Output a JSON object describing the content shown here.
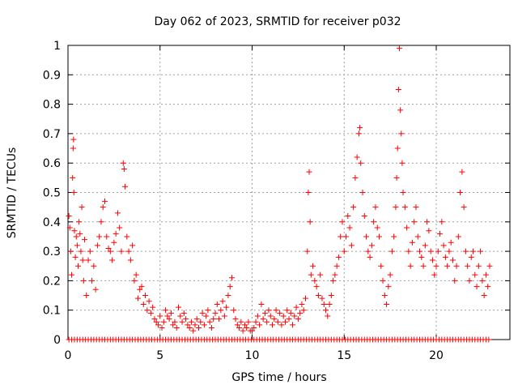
{
  "chart_data": {
    "type": "scatter",
    "title": "Day 062 of 2023, SRMTID for receiver p032",
    "xlabel": "GPS time / hours",
    "ylabel": "SRMTID / TECUs",
    "xlim": [
      0,
      24
    ],
    "ylim": [
      0,
      1
    ],
    "xticks": [
      0,
      5,
      10,
      15,
      20
    ],
    "xtick_labels": [
      "0",
      "5",
      "10",
      "15",
      "20"
    ],
    "yticks": [
      0,
      0.1,
      0.2,
      0.3,
      0.4,
      0.5,
      0.6,
      0.7,
      0.8,
      0.9,
      1
    ],
    "ytick_labels": [
      "0",
      "0.1",
      "0.2",
      "0.3",
      "0.4",
      "0.5",
      "0.6",
      "0.7",
      "0.8",
      "0.9",
      "1"
    ],
    "grid": true,
    "marker": "+",
    "marker_color": "#ff0000",
    "series": [
      {
        "name": "SRMTID",
        "points": [
          [
            0.05,
            0.42
          ],
          [
            0.1,
            0.38
          ],
          [
            0.15,
            0.3
          ],
          [
            0.2,
            0.22
          ],
          [
            0.25,
            0.55
          ],
          [
            0.28,
            0.65
          ],
          [
            0.3,
            0.68
          ],
          [
            0.32,
            0.5
          ],
          [
            0.35,
            0.37
          ],
          [
            0.4,
            0.28
          ],
          [
            0.45,
            0.35
          ],
          [
            0.5,
            0.32
          ],
          [
            0.55,
            0.25
          ],
          [
            0.6,
            0.4
          ],
          [
            0.65,
            0.36
          ],
          [
            0.7,
            0.3
          ],
          [
            0.75,
            0.45
          ],
          [
            0.8,
            0.27
          ],
          [
            0.85,
            0.2
          ],
          [
            0.9,
            0.34
          ],
          [
            1.0,
            0.15
          ],
          [
            1.1,
            0.27
          ],
          [
            1.2,
            0.3
          ],
          [
            1.3,
            0.2
          ],
          [
            1.4,
            0.25
          ],
          [
            1.5,
            0.17
          ],
          [
            1.6,
            0.32
          ],
          [
            1.7,
            0.35
          ],
          [
            1.8,
            0.4
          ],
          [
            1.9,
            0.45
          ],
          [
            2.0,
            0.47
          ],
          [
            2.1,
            0.35
          ],
          [
            2.2,
            0.31
          ],
          [
            2.3,
            0.3
          ],
          [
            2.4,
            0.27
          ],
          [
            2.5,
            0.33
          ],
          [
            2.6,
            0.36
          ],
          [
            2.7,
            0.43
          ],
          [
            2.8,
            0.38
          ],
          [
            2.9,
            0.3
          ],
          [
            3.0,
            0.6
          ],
          [
            3.05,
            0.58
          ],
          [
            3.1,
            0.52
          ],
          [
            3.2,
            0.35
          ],
          [
            3.3,
            0.3
          ],
          [
            3.4,
            0.27
          ],
          [
            3.5,
            0.32
          ],
          [
            3.6,
            0.2
          ],
          [
            3.7,
            0.22
          ],
          [
            3.8,
            0.14
          ],
          [
            3.9,
            0.17
          ],
          [
            4.0,
            0.18
          ],
          [
            4.1,
            0.12
          ],
          [
            4.2,
            0.15
          ],
          [
            4.3,
            0.1
          ],
          [
            4.4,
            0.13
          ],
          [
            4.5,
            0.09
          ],
          [
            4.6,
            0.11
          ],
          [
            4.7,
            0.07
          ],
          [
            4.8,
            0.06
          ],
          [
            4.9,
            0.05
          ],
          [
            5.0,
            0.08
          ],
          [
            5.1,
            0.04
          ],
          [
            5.2,
            0.06
          ],
          [
            5.3,
            0.1
          ],
          [
            5.4,
            0.08
          ],
          [
            5.5,
            0.07
          ],
          [
            5.6,
            0.09
          ],
          [
            5.7,
            0.05
          ],
          [
            5.8,
            0.06
          ],
          [
            5.9,
            0.04
          ],
          [
            6.0,
            0.11
          ],
          [
            6.1,
            0.08
          ],
          [
            6.2,
            0.06
          ],
          [
            6.3,
            0.09
          ],
          [
            6.4,
            0.07
          ],
          [
            6.5,
            0.05
          ],
          [
            6.6,
            0.04
          ],
          [
            6.7,
            0.06
          ],
          [
            6.8,
            0.03
          ],
          [
            6.9,
            0.05
          ],
          [
            7.0,
            0.07
          ],
          [
            7.1,
            0.04
          ],
          [
            7.2,
            0.06
          ],
          [
            7.3,
            0.09
          ],
          [
            7.4,
            0.05
          ],
          [
            7.5,
            0.08
          ],
          [
            7.6,
            0.1
          ],
          [
            7.7,
            0.06
          ],
          [
            7.8,
            0.04
          ],
          [
            7.9,
            0.07
          ],
          [
            8.0,
            0.09
          ],
          [
            8.1,
            0.12
          ],
          [
            8.2,
            0.07
          ],
          [
            8.3,
            0.1
          ],
          [
            8.4,
            0.13
          ],
          [
            8.5,
            0.08
          ],
          [
            8.6,
            0.11
          ],
          [
            8.7,
            0.15
          ],
          [
            8.8,
            0.18
          ],
          [
            8.9,
            0.21
          ],
          [
            9.0,
            0.1
          ],
          [
            9.1,
            0.07
          ],
          [
            9.2,
            0.05
          ],
          [
            9.3,
            0.04
          ],
          [
            9.4,
            0.06
          ],
          [
            9.5,
            0.03
          ],
          [
            9.6,
            0.05
          ],
          [
            9.7,
            0.04
          ],
          [
            9.8,
            0.06
          ],
          [
            9.9,
            0.03
          ],
          [
            10.0,
            0.03
          ],
          [
            10.1,
            0.04
          ],
          [
            10.2,
            0.06
          ],
          [
            10.3,
            0.08
          ],
          [
            10.4,
            0.05
          ],
          [
            10.5,
            0.12
          ],
          [
            10.6,
            0.07
          ],
          [
            10.7,
            0.09
          ],
          [
            10.8,
            0.06
          ],
          [
            10.9,
            0.1
          ],
          [
            11.0,
            0.08
          ],
          [
            11.1,
            0.05
          ],
          [
            11.2,
            0.07
          ],
          [
            11.3,
            0.1
          ],
          [
            11.4,
            0.06
          ],
          [
            11.5,
            0.09
          ],
          [
            11.6,
            0.05
          ],
          [
            11.7,
            0.08
          ],
          [
            11.8,
            0.06
          ],
          [
            11.9,
            0.1
          ],
          [
            12.0,
            0.07
          ],
          [
            12.1,
            0.09
          ],
          [
            12.2,
            0.05
          ],
          [
            12.3,
            0.08
          ],
          [
            12.4,
            0.11
          ],
          [
            12.5,
            0.07
          ],
          [
            12.6,
            0.09
          ],
          [
            12.7,
            0.12
          ],
          [
            12.8,
            0.1
          ],
          [
            12.9,
            0.14
          ],
          [
            13.0,
            0.3
          ],
          [
            13.05,
            0.5
          ],
          [
            13.1,
            0.57
          ],
          [
            13.15,
            0.4
          ],
          [
            13.2,
            0.22
          ],
          [
            13.3,
            0.25
          ],
          [
            13.4,
            0.2
          ],
          [
            13.5,
            0.18
          ],
          [
            13.6,
            0.15
          ],
          [
            13.7,
            0.22
          ],
          [
            13.8,
            0.14
          ],
          [
            13.9,
            0.12
          ],
          [
            14.0,
            0.1
          ],
          [
            14.1,
            0.08
          ],
          [
            14.2,
            0.12
          ],
          [
            14.3,
            0.15
          ],
          [
            14.4,
            0.2
          ],
          [
            14.5,
            0.22
          ],
          [
            14.6,
            0.25
          ],
          [
            14.7,
            0.28
          ],
          [
            14.8,
            0.35
          ],
          [
            14.9,
            0.4
          ],
          [
            15.0,
            0.3
          ],
          [
            15.1,
            0.35
          ],
          [
            15.2,
            0.42
          ],
          [
            15.3,
            0.38
          ],
          [
            15.4,
            0.32
          ],
          [
            15.5,
            0.45
          ],
          [
            15.6,
            0.55
          ],
          [
            15.7,
            0.62
          ],
          [
            15.8,
            0.7
          ],
          [
            15.85,
            0.72
          ],
          [
            15.9,
            0.6
          ],
          [
            16.0,
            0.5
          ],
          [
            16.1,
            0.42
          ],
          [
            16.2,
            0.35
          ],
          [
            16.3,
            0.3
          ],
          [
            16.4,
            0.28
          ],
          [
            16.5,
            0.32
          ],
          [
            16.6,
            0.4
          ],
          [
            16.7,
            0.45
          ],
          [
            16.8,
            0.38
          ],
          [
            16.9,
            0.35
          ],
          [
            17.0,
            0.25
          ],
          [
            17.1,
            0.2
          ],
          [
            17.2,
            0.15
          ],
          [
            17.3,
            0.12
          ],
          [
            17.4,
            0.18
          ],
          [
            17.5,
            0.22
          ],
          [
            17.6,
            0.3
          ],
          [
            17.7,
            0.35
          ],
          [
            17.8,
            0.45
          ],
          [
            17.85,
            0.55
          ],
          [
            17.9,
            0.65
          ],
          [
            17.95,
            0.85
          ],
          [
            18.0,
            0.99
          ],
          [
            18.05,
            0.78
          ],
          [
            18.1,
            0.7
          ],
          [
            18.15,
            0.6
          ],
          [
            18.2,
            0.5
          ],
          [
            18.3,
            0.45
          ],
          [
            18.4,
            0.38
          ],
          [
            18.5,
            0.3
          ],
          [
            18.6,
            0.25
          ],
          [
            18.7,
            0.33
          ],
          [
            18.8,
            0.4
          ],
          [
            18.9,
            0.45
          ],
          [
            19.0,
            0.35
          ],
          [
            19.1,
            0.3
          ],
          [
            19.2,
            0.28
          ],
          [
            19.3,
            0.25
          ],
          [
            19.4,
            0.32
          ],
          [
            19.5,
            0.4
          ],
          [
            19.6,
            0.37
          ],
          [
            19.7,
            0.3
          ],
          [
            19.8,
            0.27
          ],
          [
            19.9,
            0.22
          ],
          [
            20.0,
            0.25
          ],
          [
            20.1,
            0.3
          ],
          [
            20.2,
            0.36
          ],
          [
            20.3,
            0.4
          ],
          [
            20.4,
            0.32
          ],
          [
            20.5,
            0.28
          ],
          [
            20.6,
            0.25
          ],
          [
            20.7,
            0.3
          ],
          [
            20.8,
            0.33
          ],
          [
            20.9,
            0.27
          ],
          [
            21.0,
            0.2
          ],
          [
            21.1,
            0.25
          ],
          [
            21.2,
            0.35
          ],
          [
            21.3,
            0.5
          ],
          [
            21.4,
            0.57
          ],
          [
            21.5,
            0.45
          ],
          [
            21.6,
            0.3
          ],
          [
            21.7,
            0.25
          ],
          [
            21.8,
            0.2
          ],
          [
            21.9,
            0.28
          ],
          [
            22.0,
            0.3
          ],
          [
            22.1,
            0.22
          ],
          [
            22.2,
            0.18
          ],
          [
            22.3,
            0.25
          ],
          [
            22.4,
            0.3
          ],
          [
            22.5,
            0.2
          ],
          [
            22.6,
            0.15
          ],
          [
            22.7,
            0.22
          ],
          [
            22.8,
            0.18
          ],
          [
            22.9,
            0.25
          ]
        ]
      }
    ]
  }
}
